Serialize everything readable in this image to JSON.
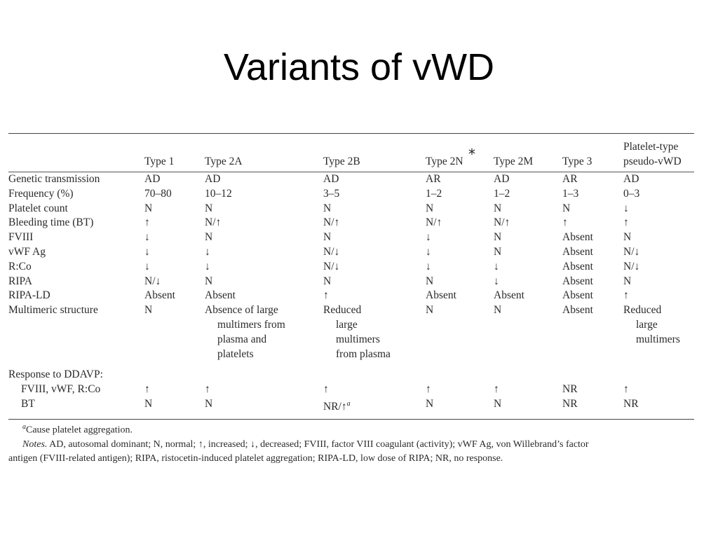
{
  "slide": {
    "title": "Variants of vWD"
  },
  "table": {
    "header": {
      "blank": "",
      "type1": "Type 1",
      "type2a": "Type 2A",
      "type2b": "Type 2B",
      "type2n": "Type 2N",
      "type2m": "Type 2M",
      "type3": "Type 3",
      "platelet_line1": "Platelet-type",
      "platelet_line2": "pseudo-vWD"
    },
    "rows": {
      "genetic": [
        "Genetic transmission",
        "AD",
        "AD",
        "AD",
        "AR",
        "AD",
        "AR",
        "AD"
      ],
      "frequency": [
        "Frequency (%)",
        "70–80",
        "10–12",
        "3–5",
        "1–2",
        "1–2",
        "1–3",
        "0–3"
      ],
      "platelet_count": [
        "Platelet count",
        "N",
        "N",
        "N",
        "N",
        "N",
        "N",
        "↓"
      ],
      "bleeding_time": [
        "Bleeding time (BT)",
        "↑",
        "N/↑",
        "N/↑",
        "N/↑",
        "N/↑",
        "↑",
        "↑"
      ],
      "fviii": [
        "FVIII",
        "↓",
        "N",
        "N",
        "↓",
        "N",
        "Absent",
        "N"
      ],
      "vwf_ag": [
        "vWF Ag",
        "↓",
        "↓",
        "N/↓",
        "↓",
        "N",
        "Absent",
        "N/↓"
      ],
      "rco": [
        "R:Co",
        "↓",
        "↓",
        "N/↓",
        "↓",
        "↓",
        "Absent",
        "N/↓"
      ],
      "ripa": [
        "RIPA",
        "N/↓",
        "N",
        "N",
        "N",
        "↓",
        "Absent",
        "N"
      ],
      "ripa_ld": [
        "RIPA-LD",
        "Absent",
        "Absent",
        "↑",
        "Absent",
        "Absent",
        "Absent",
        "↑"
      ]
    },
    "multimeric": {
      "label": "Multimeric structure",
      "type1": "N",
      "type2a": [
        "Absence of large",
        "multimers from",
        "plasma and",
        "platelets"
      ],
      "type2b": [
        "Reduced",
        "large",
        "multimers",
        "from plasma"
      ],
      "type2n": "N",
      "type2m": "N",
      "type3": "Absent",
      "platelet": [
        "Reduced",
        "large",
        "multimers"
      ]
    },
    "ddavp": {
      "label": "Response to DDAVP:",
      "fviii_row": [
        "FVIII, vWF, R:Co",
        "↑",
        "↑",
        "↑",
        "↑",
        "↑",
        "NR",
        "↑"
      ],
      "bt_row": {
        "label": "BT",
        "type1": "N",
        "type2a": "N",
        "type2b": "NR/↑",
        "type2b_sup": "a",
        "type2n": "N",
        "type2m": "N",
        "type3": "NR",
        "platelet": "NR"
      }
    },
    "asterisk_mark": "*"
  },
  "notes": {
    "footnote_sup": "a",
    "footnote_text": "Cause platelet aggregation.",
    "notes_label": "Notes.",
    "notes_line1": "AD, autosomal dominant; N, normal; ↑, increased; ↓, decreased; FVIII, factor VIII coagulant (activity); vWF Ag, von Willebrand’s factor",
    "notes_line2": "antigen (FVIII-related antigen); RIPA, ristocetin-induced platelet aggregation; RIPA-LD, low dose of RIPA; NR, no response."
  }
}
